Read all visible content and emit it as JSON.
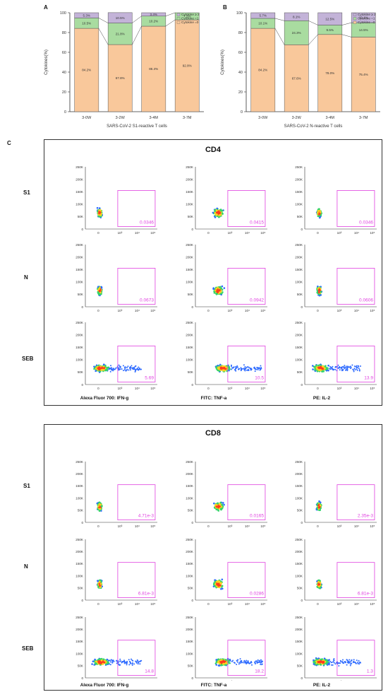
{
  "panel_labels": {
    "a": "A",
    "b": "B",
    "c": "C"
  },
  "chart_data": [
    {
      "type": "bar",
      "stacked": true,
      "categories": [
        "3-0W",
        "3-2W",
        "3-4M",
        "3-7M"
      ],
      "xlabel": "SARS-CoV-2 S1-reactive T cells",
      "ylabel": "Cytokines(%)",
      "ylim": [
        0,
        100
      ],
      "yticks": [
        0,
        20,
        40,
        60,
        80,
        100
      ],
      "legend_position": "top-right",
      "series": [
        {
          "name": "Cytokine =0",
          "color": "#f9c89b",
          "values": [
            84.2,
            67.8,
            86.4,
            92.8
          ],
          "labels": [
            "84.2%",
            "67.8%",
            "86.4%",
            "92.8%"
          ]
        },
        {
          "name": "Cytokine =1",
          "color": "#a9dca0",
          "values": [
            10.5,
            21.8,
            10.2,
            7.2
          ],
          "labels": [
            "10.5%",
            "21.8%",
            "10.2%",
            "7.2%"
          ]
        },
        {
          "name": "Cytokine ≥ 2",
          "color": "#c3b3d8",
          "values": [
            5.3,
            10.5,
            3.4,
            0
          ],
          "labels": [
            "5.3%",
            "10.5%",
            "3.4%",
            ""
          ]
        }
      ]
    },
    {
      "type": "bar",
      "stacked": true,
      "categories": [
        "3-0W",
        "3-2W",
        "3-4M",
        "3-7M"
      ],
      "xlabel": "SARS-CoV-2 N-reactive T cells",
      "ylabel": "Cytokines(%)",
      "ylim": [
        0,
        100
      ],
      "yticks": [
        0,
        20,
        40,
        60,
        80,
        100
      ],
      "legend_position": "top-right",
      "series": [
        {
          "name": "Cytokine =0",
          "color": "#f9c89b",
          "values": [
            84.2,
            67.6,
            78.0,
            75.4
          ],
          "labels": [
            "84.2%",
            "67.6%",
            "78.0%",
            "75.4%"
          ]
        },
        {
          "name": "Cytokine =1",
          "color": "#a9dca0",
          "values": [
            10.1,
            24.3,
            9.5,
            14.5
          ],
          "labels": [
            "10.1%",
            "24.3%",
            "9.5%",
            "14.5%"
          ]
        },
        {
          "name": "Cytokine ≥ 2",
          "color": "#c3b3d8",
          "values": [
            5.7,
            8.1,
            12.5,
            10.1
          ],
          "labels": [
            "5.7%",
            "8.1%",
            "12.5%",
            "10.1%"
          ]
        }
      ]
    }
  ],
  "flow": {
    "y_ticks": [
      "250K",
      "200K",
      "150K",
      "100K",
      "50K",
      "0"
    ],
    "x_ticks": [
      "0",
      "10³",
      "10⁴",
      "10⁵"
    ],
    "cd4": {
      "title": "CD4",
      "rows": [
        "S1",
        "N",
        "SEB"
      ],
      "columns": [
        "Alexa Fluor 700: IFN-g",
        "FITC: TNF-a",
        "PE: IL-2"
      ],
      "values": [
        [
          "0.0346",
          "0.0415",
          "0.0346"
        ],
        [
          "0.0673",
          "0.0942",
          "0.0606"
        ],
        [
          "5.69",
          "10.5",
          "13.9"
        ]
      ]
    },
    "cd8": {
      "title": "CD8",
      "rows": [
        "S1",
        "N",
        "SEB"
      ],
      "columns": [
        "Alexa Fluor 700: IFN-g",
        "FITC: TNF-a",
        "PE: IL-2"
      ],
      "values": [
        [
          "4.71e-3",
          "0.0165",
          "2.35e-3"
        ],
        [
          "6.81e-3",
          "0.0286",
          "6.81e-3"
        ],
        [
          "14.8",
          "18.2",
          "1.3"
        ]
      ]
    },
    "gate_color": "#e040e0"
  }
}
